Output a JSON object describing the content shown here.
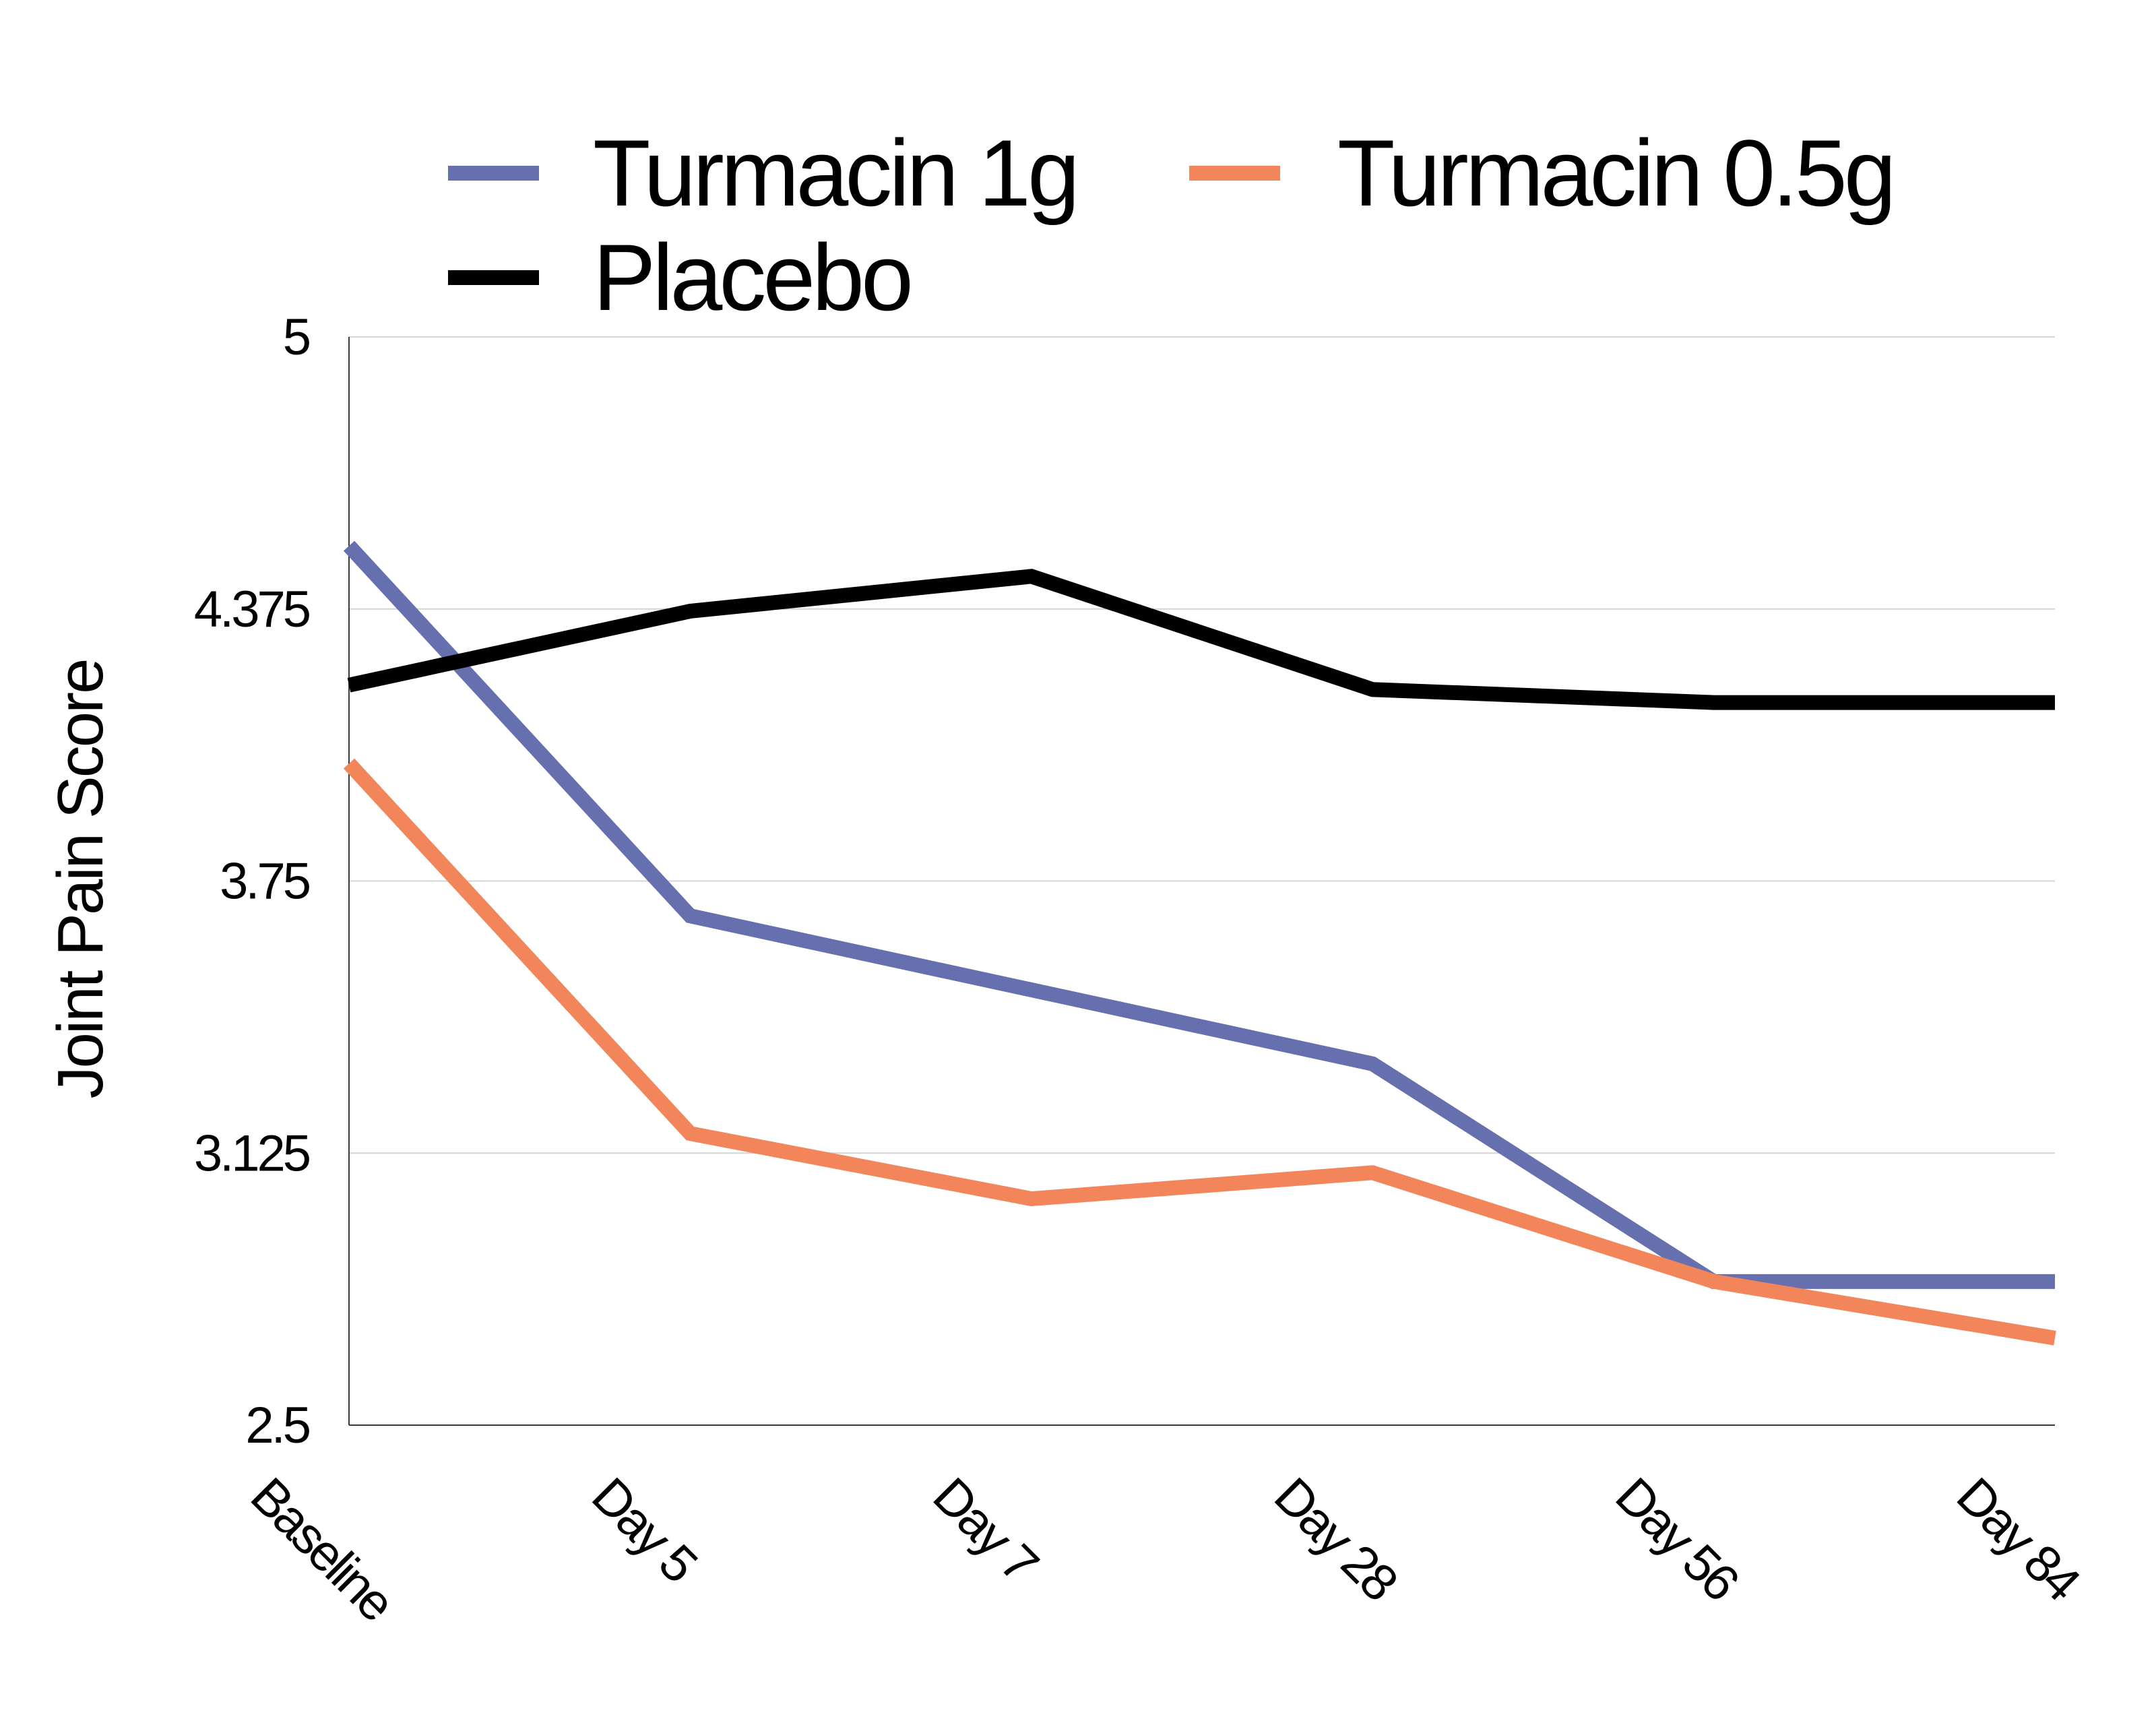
{
  "chart_data": {
    "type": "line",
    "categories": [
      "Baseline",
      "Day 5",
      "Day 7",
      "Day 28",
      "Day 56",
      "Day 84"
    ],
    "ylabel": "Joint Pain Score",
    "xlabel": "",
    "ylim": [
      2.5,
      5
    ],
    "yticks": [
      {
        "value": 2.5,
        "label": "2.5"
      },
      {
        "value": 3.125,
        "label": "3.125"
      },
      {
        "value": 3.75,
        "label": "3.75"
      },
      {
        "value": 4.375,
        "label": "4.375"
      },
      {
        "value": 5,
        "label": "5"
      }
    ],
    "grid": true,
    "legend_position": "top",
    "series": [
      {
        "name": "Turmacin 1g",
        "color": "#6670ae",
        "values": [
          4.52,
          3.67,
          3.5,
          3.33,
          2.83,
          2.83
        ]
      },
      {
        "name": "Turmacin 0.5g",
        "color": "#f3855a",
        "values": [
          4.02,
          3.17,
          3.02,
          3.08,
          2.83,
          2.7
        ]
      },
      {
        "name": "Placebo",
        "color": "#000000",
        "values": [
          4.2,
          4.37,
          4.45,
          4.19,
          4.16,
          4.16
        ]
      }
    ]
  }
}
